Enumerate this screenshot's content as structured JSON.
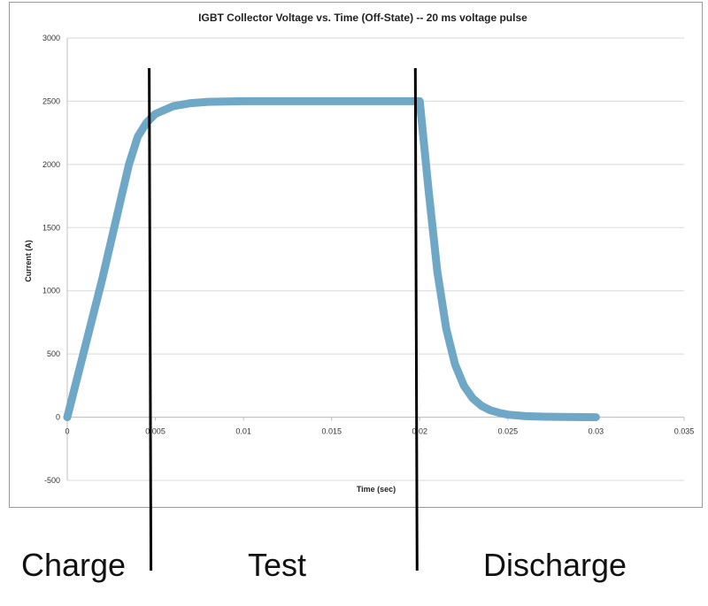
{
  "chart_data": {
    "type": "line",
    "title": "IGBT Collector Voltage vs. Time (Off-State) -- 20 ms voltage pulse",
    "xlabel": "Time (sec)",
    "ylabel": "Current (A)",
    "xlim": [
      0,
      0.035
    ],
    "ylim": [
      -500,
      3000
    ],
    "x_ticks": [
      0,
      0.005,
      0.01,
      0.015,
      0.02,
      0.025,
      0.03,
      0.035
    ],
    "x_tick_labels": [
      "0",
      "0.005",
      "0.01",
      "0.015",
      "0.02",
      "0.025",
      "0.03",
      "0.035"
    ],
    "y_ticks": [
      -500,
      0,
      500,
      1000,
      1500,
      2000,
      2500,
      3000
    ],
    "y_tick_labels": [
      "-500",
      "0",
      "500",
      "1000",
      "1500",
      "2000",
      "2500",
      "3000"
    ],
    "grid": "horizontal",
    "series": [
      {
        "color": "#6fa8c6",
        "x": [
          0,
          0.001,
          0.002,
          0.003,
          0.0035,
          0.004,
          0.0045,
          0.005,
          0.006,
          0.007,
          0.008,
          0.009,
          0.01,
          0.012,
          0.015,
          0.018,
          0.02,
          0.0205,
          0.021,
          0.0215,
          0.022,
          0.0225,
          0.023,
          0.0235,
          0.024,
          0.0245,
          0.025,
          0.026,
          0.027,
          0.028,
          0.03
        ],
        "y": [
          0,
          550,
          1100,
          1700,
          2000,
          2220,
          2330,
          2400,
          2460,
          2485,
          2495,
          2498,
          2500,
          2500,
          2500,
          2500,
          2500,
          1800,
          1150,
          700,
          420,
          250,
          150,
          90,
          55,
          35,
          20,
          8,
          4,
          2,
          0
        ]
      }
    ],
    "phase_markers": [
      {
        "x": 0.0047,
        "label": "Charge"
      },
      {
        "x": 0.0198,
        "label": "Test"
      }
    ],
    "phase_labels": [
      "Charge",
      "Test",
      "Discharge"
    ]
  }
}
